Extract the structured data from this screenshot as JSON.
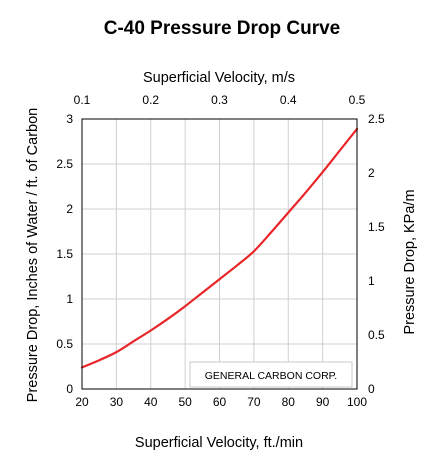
{
  "chart_data": {
    "type": "line",
    "title": "C-40 Pressure Drop Curve",
    "xlabel": "Superficial Velocity, ft./min",
    "ylabel": "Pressure Drop, Inches of Water / ft. of Carbon",
    "x2label": "Superficial Velocity, m/s",
    "y2label": "Pressure Drop, KPa/m",
    "xlim": [
      20,
      100
    ],
    "ylim": [
      0,
      3
    ],
    "x2lim": [
      0.1,
      0.5
    ],
    "y2lim": [
      0,
      2.5
    ],
    "x_ticks": [
      "20",
      "30",
      "40",
      "50",
      "60",
      "70",
      "80",
      "90",
      "100"
    ],
    "y_ticks": [
      "0",
      "0.5",
      "1",
      "1.5",
      "2",
      "2.5",
      "3"
    ],
    "x2_ticks": [
      "0.1",
      "0.2",
      "0.3",
      "0.4",
      "0.5"
    ],
    "y2_ticks": [
      "0",
      "0.5",
      "1",
      "1.5",
      "2",
      "2.5"
    ],
    "grid": true,
    "line_color": "#e8262a",
    "series": [
      {
        "x": [
          20,
          25,
          30,
          35,
          40,
          45,
          50,
          55,
          60,
          65,
          70,
          75,
          80,
          85,
          90,
          95,
          100
        ],
        "values": [
          0.24,
          0.32,
          0.41,
          0.53,
          0.65,
          0.78,
          0.92,
          1.07,
          1.22,
          1.37,
          1.53,
          1.74,
          1.96,
          2.18,
          2.41,
          2.65,
          2.89
        ]
      }
    ],
    "annotation": "GENERAL CARBON CORP."
  }
}
